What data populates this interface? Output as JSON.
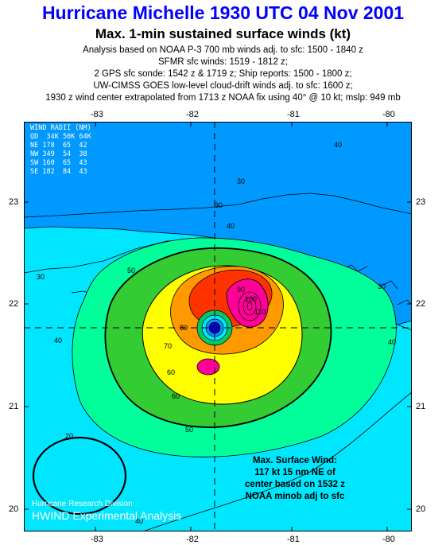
{
  "header": {
    "title": "Hurricane Michelle 1930 UTC 04 Nov 2001",
    "subtitle": "Max. 1-min sustained surface winds (kt)",
    "lines": [
      "Analysis based on NOAA P-3 700 mb winds adj. to sfc: 1500 - 1840 z",
      "SFMR sfc winds: 1519 - 1812 z;",
      "2 GPS sfc sonde: 1542 z & 1719 z; Ship reports: 1500 - 1800 z;",
      "UW-CIMSS GOES low-level cloud-drift winds adj. to sfc: 1600 z;",
      "1930 z wind center extrapolated from 1713 z NOAA fix using 40° @ 10 kt; mslp: 949 mb"
    ]
  },
  "axes": {
    "lon_labels": [
      "-83",
      "-82",
      "-81",
      "-80"
    ],
    "lat_labels": [
      "23",
      "22",
      "21",
      "20"
    ]
  },
  "wind_radii_table": [
    "WIND RADII (NM)",
    "QD  34K 50K 64K",
    "NE 178  65  42",
    "NW 349  54  38",
    "SW 160  65  43",
    "SE 182  84  43"
  ],
  "contour_labels": [
    "20",
    "30",
    "30",
    "30",
    "30",
    "40",
    "40",
    "40",
    "40",
    "40",
    "50",
    "50",
    "60",
    "60",
    "70",
    "80",
    "90",
    "100",
    "110"
  ],
  "max_wind": {
    "lines": [
      "Max. Surface Wind:",
      "117 kt 15 nm NE of",
      "center based on  1532 z",
      "NOAA minob adj to sfc"
    ]
  },
  "credits": {
    "division": "Hurricane Research Division",
    "product": "HWIND Experimental Analysis"
  },
  "colors": {
    "title": "#0000ff",
    "ocean_outer": "#0099ff",
    "band_30": "#00e6ff",
    "band_40": "#00ff9a",
    "band_50": "#33cc33",
    "band_60": "#ffff00",
    "band_80": "#ff9900",
    "band_90": "#ff3300",
    "band_100": "#ff0099",
    "center": "#0000cc"
  }
}
